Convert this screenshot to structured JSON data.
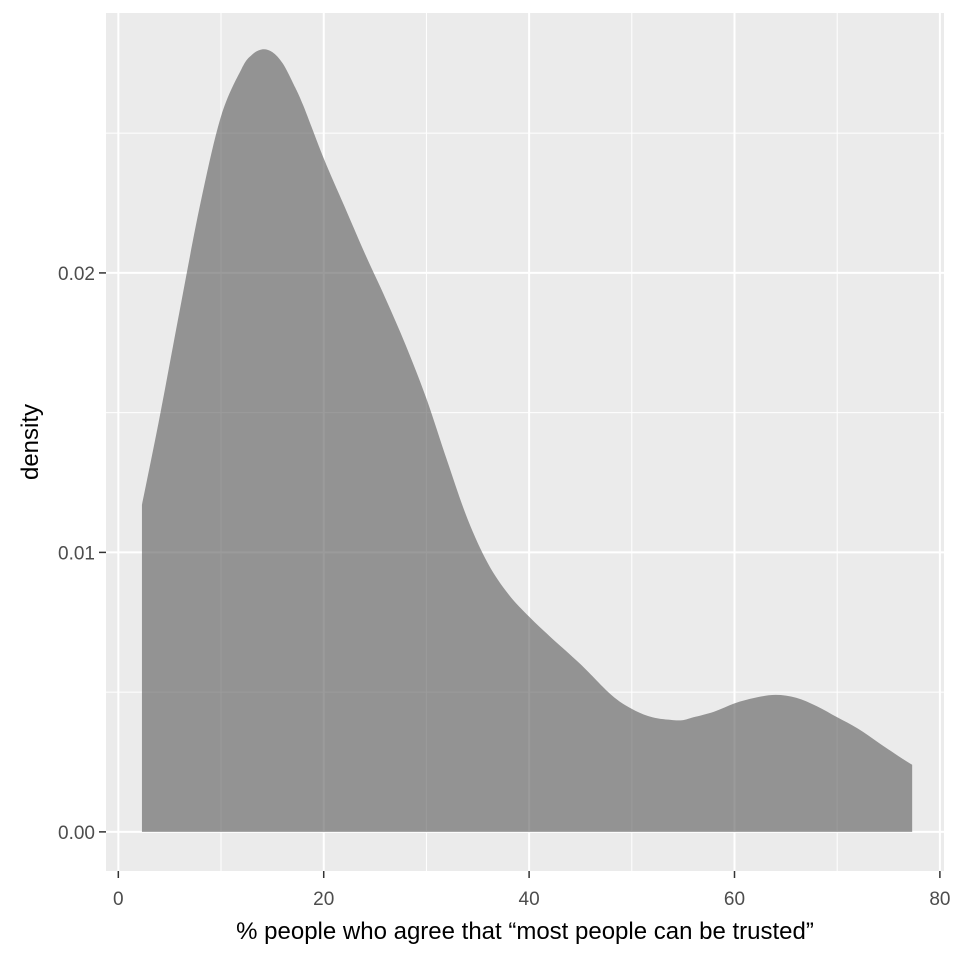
{
  "chart_data": {
    "type": "area",
    "title": "",
    "xlabel": "% people who agree that “most people can be trusted”",
    "ylabel": "density",
    "xlim": [
      -1.2,
      80.4
    ],
    "ylim": [
      -0.0014,
      0.0293
    ],
    "x_ticks": [
      0,
      20,
      40,
      60,
      80
    ],
    "x_tick_labels": [
      "0",
      "20",
      "40",
      "60",
      "80"
    ],
    "y_ticks": [
      0.0,
      0.01,
      0.02
    ],
    "y_tick_labels": [
      "0.00",
      "0.01",
      "0.02"
    ],
    "grid": true,
    "legend": "none",
    "series": [
      {
        "fill": "#595959",
        "fill_opacity": 0.6,
        "x": [
          2.3,
          4,
          6,
          8,
          10,
          12,
          13,
          14,
          15,
          16,
          17,
          18,
          20,
          22,
          24,
          26,
          28,
          30,
          32,
          34,
          36,
          38,
          40,
          42,
          45,
          48,
          50,
          52,
          54,
          55,
          56,
          58,
          60,
          62,
          64,
          66,
          68,
          70,
          72,
          74,
          76,
          77.3
        ],
        "y": [
          0.0117,
          0.0148,
          0.0187,
          0.0225,
          0.0256,
          0.0273,
          0.0278,
          0.028,
          0.0279,
          0.0275,
          0.0268,
          0.026,
          0.0241,
          0.0224,
          0.0207,
          0.0191,
          0.0174,
          0.0155,
          0.0133,
          0.0112,
          0.0096,
          0.0085,
          0.0077,
          0.007,
          0.006,
          0.0049,
          0.0044,
          0.0041,
          0.004,
          0.004,
          0.0041,
          0.0043,
          0.0046,
          0.0048,
          0.0049,
          0.0048,
          0.0045,
          0.0041,
          0.0037,
          0.0032,
          0.0027,
          0.0024
        ]
      }
    ]
  }
}
